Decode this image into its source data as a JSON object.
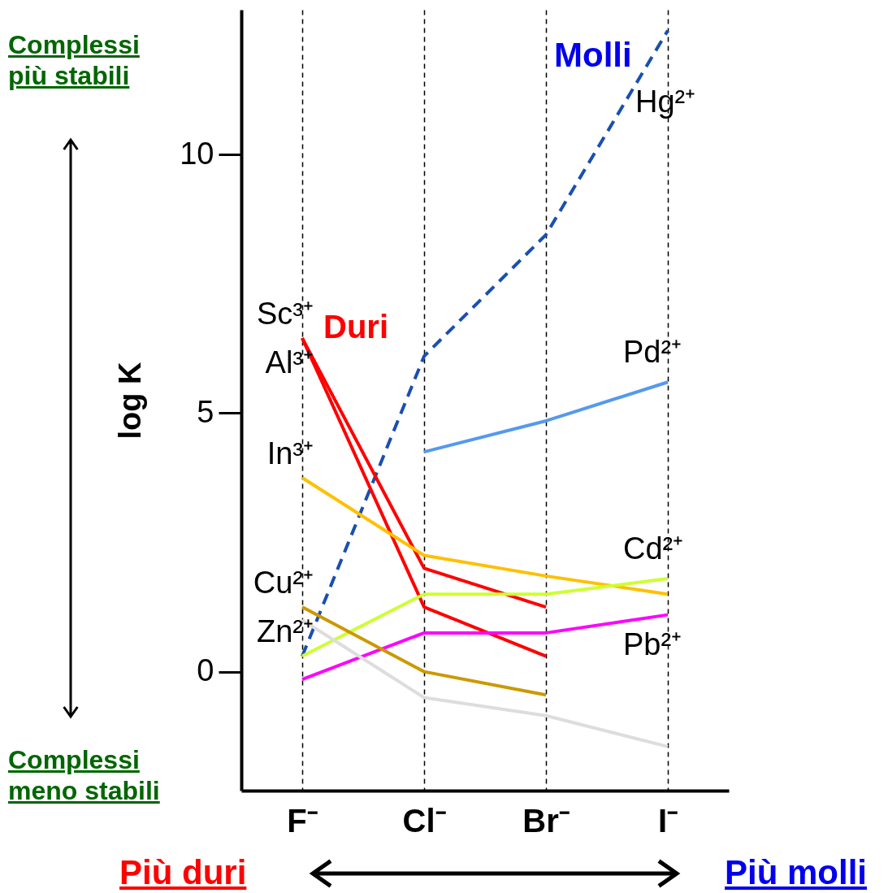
{
  "chart_data": {
    "type": "line",
    "ylabel": "log K",
    "categories": [
      "F⁻",
      "Cl⁻",
      "Br⁻",
      "I⁻"
    ],
    "series": [
      {
        "name": "Hg²⁺",
        "color": "#1a4fb0",
        "line_style": "dashed",
        "values": [
          0.3,
          6.1,
          8.45,
          12.4
        ]
      },
      {
        "name": "Sc³⁺",
        "color": "#ff0000",
        "values": [
          6.45,
          2.0,
          1.25,
          null
        ]
      },
      {
        "name": "Al³⁺",
        "color": "#ff0000",
        "values": [
          6.45,
          1.25,
          0.3,
          null
        ]
      },
      {
        "name": "In³⁺",
        "color": "#ffc000",
        "values": [
          3.75,
          2.25,
          1.85,
          1.5
        ]
      },
      {
        "name": "Pd²⁺",
        "color": "#5599ee",
        "values": [
          null,
          4.25,
          4.85,
          5.6
        ]
      },
      {
        "name": "Cd²⁺",
        "color": "#ccff33",
        "values": [
          0.3,
          1.5,
          1.5,
          1.8
        ]
      },
      {
        "name": "Pb²⁺",
        "color": "#ff00ff",
        "values": [
          -0.15,
          0.75,
          0.75,
          1.1
        ]
      },
      {
        "name": "Cu²⁺",
        "color": "#cc9900",
        "values": [
          1.25,
          0,
          -0.45,
          null
        ]
      },
      {
        "name": "Zn²⁺",
        "color": "#dddddd",
        "values": [
          1.0,
          -0.5,
          -0.85,
          -1.45
        ]
      }
    ],
    "ylim": [
      -2.3,
      12.8
    ],
    "yticks": [
      0,
      5,
      10
    ],
    "grid": "x",
    "annotations": [
      "Complessi più stabili",
      "Complessi meno stabili",
      "Duri",
      "Molli",
      "Più duri",
      "Più molli"
    ]
  }
}
